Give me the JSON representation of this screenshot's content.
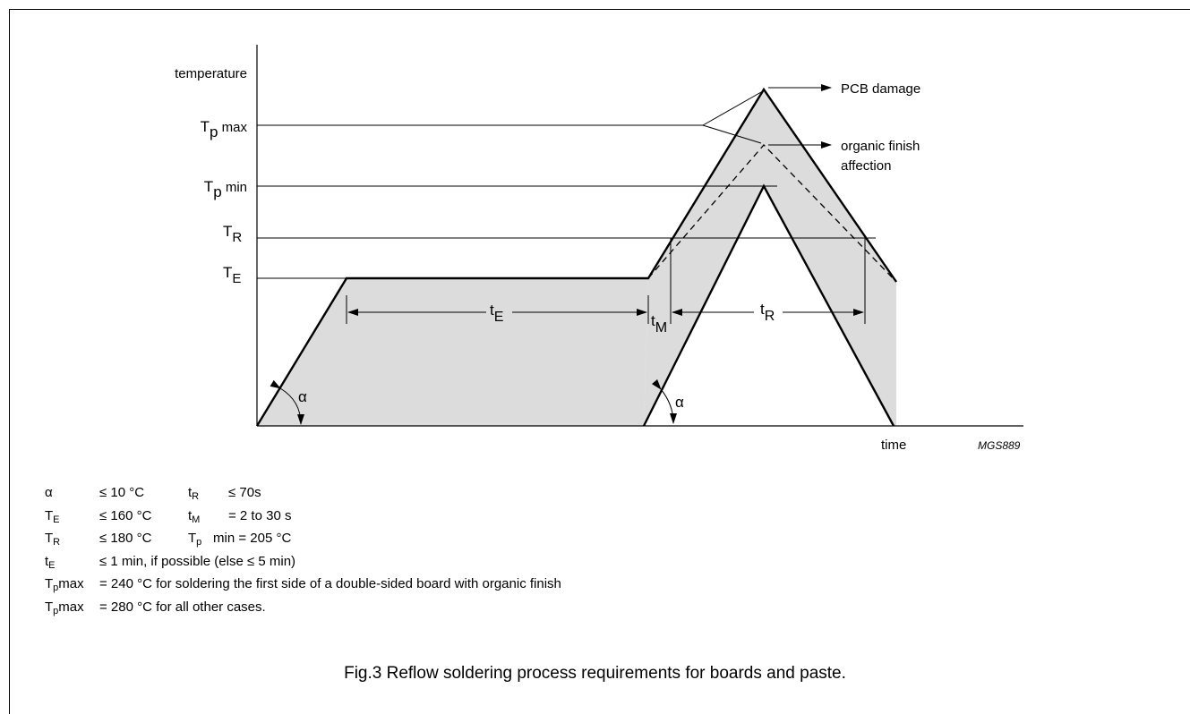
{
  "diagram": {
    "y_axis_label": "temperature",
    "x_axis_label": "time",
    "code": "MGS889",
    "levels": {
      "tp_max": {
        "main": "T",
        "sub": "p",
        "suffix": " max"
      },
      "tp_min": {
        "main": "T",
        "sub": "p",
        "suffix": " min"
      },
      "tr": {
        "main": "T",
        "sub": "R"
      },
      "te": {
        "main": "T",
        "sub": "E"
      }
    },
    "intervals": {
      "te": {
        "main": "t",
        "sub": "E"
      },
      "tm": {
        "main": "t",
        "sub": "M"
      },
      "tr": {
        "main": "t",
        "sub": "R"
      }
    },
    "angle_symbol": "α",
    "annotations": {
      "pcb_damage": "PCB damage",
      "organic_finish_1": "organic finish",
      "organic_finish_2": "affection"
    }
  },
  "legend": [
    {
      "sym": "α",
      "sub": "",
      "val": "≤ 10 °C",
      "sym2": "t",
      "sub2": "R",
      "val2": "≤ 70s"
    },
    {
      "sym": "T",
      "sub": "E",
      "val": "≤ 160 °C",
      "sym2": "t",
      "sub2": "M",
      "val2": "= 2 to 30 s"
    },
    {
      "sym": "T",
      "sub": "R",
      "val": "≤ 180 °C",
      "sym2": "T",
      "sub2": "p",
      "val2": "min = 205 °C"
    }
  ],
  "legend_full": [
    {
      "sym": "t",
      "sub": "E",
      "text": "≤ 1 min, if possible (else ≤ 5 min)"
    },
    {
      "sym": "T",
      "sub": "p",
      "suffix": "max",
      "text": "= 240 °C for soldering the first side of a double-sided board with organic finish"
    },
    {
      "sym": "T",
      "sub": "p",
      "suffix": "max",
      "text": "= 280 °C for all other cases."
    }
  ],
  "caption": "Fig.3  Reflow soldering process requirements for boards and paste."
}
